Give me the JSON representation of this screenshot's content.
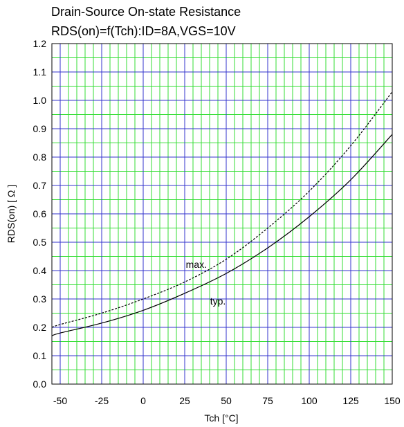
{
  "chart_data": {
    "type": "line",
    "title": "Drain-Source On-state Resistance",
    "subtitle": "RDS(on)=f(Tch):ID=8A,VGS=10V",
    "xlabel": "Tch [°C]",
    "ylabel": "RDS(on) [ Ω ]",
    "xlim": [
      -55,
      150
    ],
    "ylim": [
      0.0,
      1.2
    ],
    "xticks": [
      -50,
      -25,
      0,
      25,
      50,
      75,
      100,
      125,
      150
    ],
    "xtick_labels": [
      "-50",
      "-25",
      "0",
      "25",
      "50",
      "75",
      "100",
      "125",
      "150"
    ],
    "yticks": [
      0.0,
      0.1,
      0.2,
      0.3,
      0.4,
      0.5,
      0.6,
      0.7,
      0.8,
      0.9,
      1.0,
      1.1,
      1.2
    ],
    "ytick_labels": [
      "0.0",
      "0.1",
      "0.2",
      "0.3",
      "0.4",
      "0.5",
      "0.6",
      "0.7",
      "0.8",
      "0.9",
      "1.0",
      "1.1",
      "1.2"
    ],
    "grid": true,
    "colors": {
      "major_grid": "#3333cc",
      "minor_grid": "#33dd33",
      "line": "#000000"
    },
    "series": [
      {
        "name": "max.",
        "style": "dashed",
        "x": [
          -55,
          -50,
          -25,
          0,
          25,
          50,
          75,
          100,
          125,
          150
        ],
        "y": [
          0.2,
          0.21,
          0.25,
          0.3,
          0.36,
          0.44,
          0.55,
          0.68,
          0.84,
          1.03
        ]
      },
      {
        "name": "typ.",
        "style": "solid",
        "x": [
          -55,
          -50,
          -25,
          0,
          25,
          50,
          75,
          100,
          125,
          150
        ],
        "y": [
          0.17,
          0.18,
          0.215,
          0.26,
          0.32,
          0.39,
          0.48,
          0.59,
          0.72,
          0.88
        ]
      }
    ],
    "annotations": [
      {
        "text": "max.",
        "x": 32,
        "y": 0.41
      },
      {
        "text": "typ.",
        "x": 45,
        "y": 0.28
      }
    ]
  }
}
